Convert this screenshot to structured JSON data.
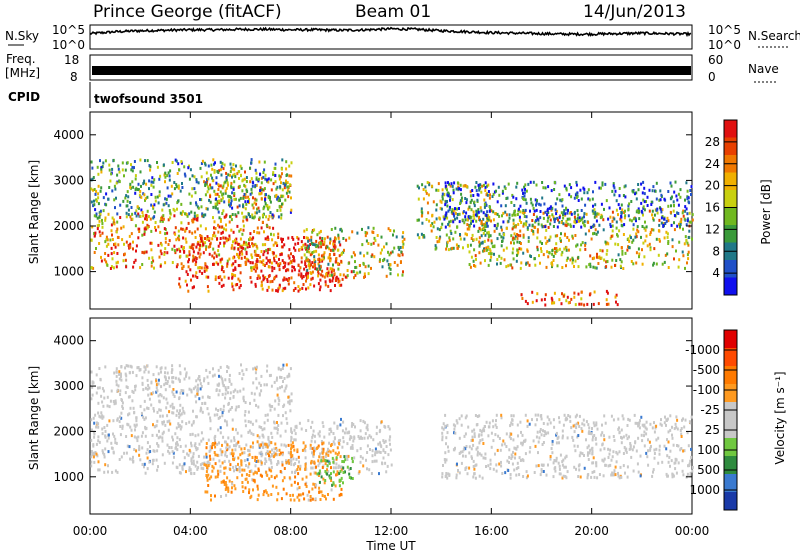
{
  "header": {
    "station": "Prince George (fitACF)",
    "beam": "Beam 01",
    "date": "14/Jun/2013"
  },
  "side_labels": {
    "nsky": "N.Sky",
    "nsearch": "N.Search",
    "freq_line1": "Freq.",
    "freq_line2": "[MHz]",
    "nave": "Nave",
    "cpid": "CPID",
    "cpid_value": "twofsound 3501"
  },
  "chart_data": [
    {
      "type": "line",
      "name": "noise-panel",
      "left_ticks": [
        "10^5",
        "10^0"
      ],
      "right_ticks": [
        "10^5",
        "10^0"
      ],
      "x": [
        0,
        1,
        2,
        3,
        4,
        5,
        6,
        7,
        8,
        9,
        10,
        11,
        12,
        13,
        14,
        15,
        16,
        17,
        18,
        19,
        20,
        21,
        22,
        23,
        24
      ],
      "nsky_log": [
        3.2,
        3.6,
        3.8,
        3.9,
        4.0,
        4.0,
        4.1,
        4.1,
        4.0,
        4.0,
        3.9,
        4.0,
        4.2,
        4.1,
        3.8,
        3.6,
        3.4,
        3.3,
        3.2,
        3.1,
        3.1,
        3.2,
        3.3,
        3.2,
        3.1
      ],
      "ylim": [
        0,
        5
      ]
    },
    {
      "type": "line",
      "name": "freq-panel",
      "left_ticks": [
        "18",
        "8"
      ],
      "right_ticks": [
        "60",
        "0"
      ],
      "x": [
        0,
        24
      ],
      "freq_mhz": [
        12.5,
        12.5
      ],
      "ylim": [
        8,
        18
      ]
    },
    {
      "type": "heatmap",
      "name": "power-panel",
      "title": "",
      "ylabel": "Slant Range [km]",
      "yticks": [
        1000,
        2000,
        3000,
        4000
      ],
      "ylim": [
        180,
        4500
      ],
      "xlim": [
        0,
        24
      ],
      "colorbar": {
        "label": "Power [dB]",
        "ticks": [
          "4",
          "8",
          "12",
          "16",
          "20",
          "24",
          "28"
        ],
        "colors": [
          "#1010ee",
          "#2050c8",
          "#207888",
          "#3a9a3a",
          "#70b820",
          "#c8d010",
          "#f0b000",
          "#f07800",
          "#e84000",
          "#e01010"
        ]
      },
      "scatter_regions": [
        {
          "t0": 0.0,
          "t1": 7.5,
          "r0": 1100,
          "r1": 2300,
          "level": 0.75
        },
        {
          "t0": 3.5,
          "t1": 10.0,
          "r0": 600,
          "r1": 1800,
          "level": 0.9
        },
        {
          "t0": 6.5,
          "t1": 10.5,
          "r0": 800,
          "r1": 1300,
          "level": 0.95
        },
        {
          "t0": 4.5,
          "t1": 8.0,
          "r0": 2400,
          "r1": 3300,
          "level": 0.6
        },
        {
          "t0": 0.0,
          "t1": 8.0,
          "r0": 2200,
          "r1": 3500,
          "level": 0.35
        },
        {
          "t0": 8.5,
          "t1": 12.5,
          "r0": 900,
          "r1": 2000,
          "level": 0.55
        },
        {
          "t0": 13.0,
          "t1": 16.0,
          "r0": 1500,
          "r1": 3000,
          "level": 0.5
        },
        {
          "t0": 15.0,
          "t1": 24.0,
          "r0": 1100,
          "r1": 2400,
          "level": 0.55
        },
        {
          "t0": 17.0,
          "t1": 21.0,
          "r0": 300,
          "r1": 600,
          "level": 0.85
        },
        {
          "t0": 14.0,
          "t1": 24.0,
          "r0": 2000,
          "r1": 3000,
          "level": 0.2
        }
      ]
    },
    {
      "type": "heatmap",
      "name": "velocity-panel",
      "ylabel": "Slant Range [km]",
      "yticks": [
        1000,
        2000,
        3000,
        4000
      ],
      "ylim": [
        180,
        4500
      ],
      "xlim": [
        0,
        24
      ],
      "xticks": [
        "00:00",
        "04:00",
        "08:00",
        "12:00",
        "16:00",
        "20:00",
        "00:00"
      ],
      "xlabel": "Time UT",
      "colorbar": {
        "label": "Velocity [m s⁻¹]",
        "ticks": [
          "1000",
          "500",
          "100",
          "25",
          "-25",
          "-100",
          "-500",
          "-1000"
        ],
        "colors": [
          "#1a3aa8",
          "#3a7ad0",
          "#2e8b3e",
          "#70c840",
          "#c8c8c8",
          "#c8c8c8",
          "#ff9a20",
          "#ff7a00",
          "#ff4a00",
          "#e00000"
        ]
      },
      "scatter_regions": [
        {
          "t0": 0.0,
          "t1": 12.0,
          "r0": 1100,
          "r1": 2300,
          "kind": "ground"
        },
        {
          "t0": 14.0,
          "t1": 24.0,
          "r0": 1000,
          "r1": 2400,
          "kind": "ground"
        },
        {
          "t0": 4.5,
          "t1": 10.0,
          "r0": 500,
          "r1": 1800,
          "kind": "neg"
        },
        {
          "t0": 9.0,
          "t1": 10.5,
          "r0": 800,
          "r1": 1500,
          "kind": "pos"
        },
        {
          "t0": 0.0,
          "t1": 8.0,
          "r0": 2300,
          "r1": 3500,
          "kind": "ground"
        }
      ]
    }
  ]
}
